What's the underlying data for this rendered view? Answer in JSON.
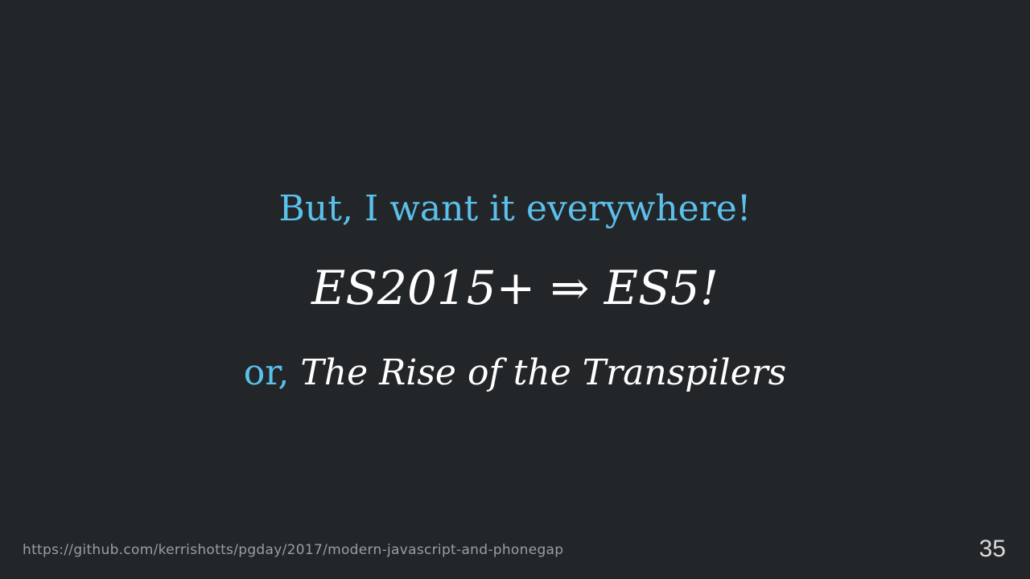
{
  "slide": {
    "headline": "But, I want it everywhere!",
    "formula": "ES2015+ ⇒ ES5!",
    "subtitle_prefix": "or,",
    "subtitle_title": "The Rise of the Transpilers",
    "footer_url": "https://github.com/kerrishotts/pgday/2017/modern-javascript-and-phonegap",
    "page_number": "35"
  },
  "colors": {
    "background": "#232628",
    "accent": "#5bc0eb",
    "text": "#ffffff",
    "footer": "#9a9ea1"
  }
}
